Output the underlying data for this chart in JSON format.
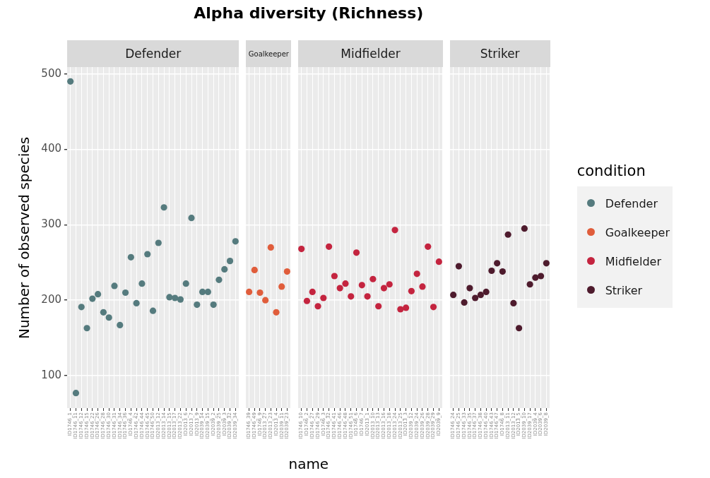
{
  "chart_data": [
    {
      "type": "scatter",
      "title": "Alpha diversity (Richness)",
      "subtitle": "Defender",
      "xlabel": "name",
      "ylabel": "Number of observed species",
      "categories": [
        "ID1746_1",
        "ID1746_11",
        "ID1746_12",
        "ID1746_15",
        "ID1746_22",
        "ID1746_26",
        "ID1746_28",
        "ID1746_30",
        "ID1746_31",
        "ID1746_34",
        "ID1746_36",
        "ID1746_4",
        "ID1746_42",
        "ID1746_44",
        "ID1746_45",
        "ID1746_50",
        "ID2013_12",
        "ID2013_14",
        "ID2013_15",
        "ID2013_17",
        "ID2013_22",
        "ID2013_6",
        "ID2013_7",
        "ID2013_9",
        "ID2039_14",
        "ID2039_15",
        "ID2039_2",
        "ID2039_25",
        "ID2039_3",
        "ID2039_32",
        "ID2039_34"
      ],
      "series": [
        {
          "name": "Defender",
          "color": "#557b7e",
          "values": [
            490,
            77,
            191,
            163,
            202,
            208,
            184,
            177,
            219,
            167,
            210,
            257,
            196,
            222,
            261,
            186,
            276,
            323,
            204,
            203,
            201,
            222,
            309,
            194,
            211,
            211,
            194,
            227,
            241,
            252,
            278
          ]
        }
      ],
      "ylim": [
        57,
        509
      ],
      "yticks": [
        100,
        200,
        300,
        400,
        500
      ],
      "grid": true,
      "marker": "circle"
    },
    {
      "type": "scatter",
      "subtitle": "Goalkeeper",
      "categories": [
        "ID1746_39",
        "ID1746_49",
        "ID1746_9",
        "ID2013_27",
        "ID2013_23",
        "ID2013_4",
        "ID2039_11",
        "ID2039_23"
      ],
      "series": [
        {
          "name": "Goalkeeper",
          "color": "#e05d3b",
          "values": [
            211,
            240,
            210,
            200,
            270,
            184,
            218,
            238
          ]
        }
      ],
      "ylim": [
        57,
        509
      ],
      "yticks": [
        100,
        200,
        300,
        400,
        500
      ],
      "grid": true,
      "marker": "circle",
      "tick_labels": "x"
    },
    {
      "type": "scatter",
      "subtitle": "Midfielder",
      "categories": [
        "ID1746_10",
        "ID1746_2",
        "ID1746_27",
        "ID1746_29",
        "ID1746_3",
        "ID1746_32",
        "ID1746_41",
        "ID1746_46",
        "ID1746_48",
        "ID1746_51",
        "ID1746_6",
        "ID1746_7",
        "ID2013_1",
        "ID2013_10",
        "ID2013_13",
        "ID2013_16",
        "ID2013_18",
        "ID2013_24",
        "ID2013_25",
        "ID2013_3",
        "ID2039_12",
        "ID2039_24",
        "ID2039_26",
        "ID2039_28",
        "ID2039_29",
        "ID2039_9"
      ],
      "series": [
        {
          "name": "Midfielder",
          "color": "#c4243f",
          "values": [
            268,
            199,
            211,
            192,
            203,
            271,
            232,
            216,
            222,
            205,
            263,
            220,
            205,
            228,
            192,
            216,
            221,
            293,
            188,
            190,
            212,
            235,
            218,
            271,
            191,
            251
          ]
        }
      ],
      "ylim": [
        57,
        509
      ],
      "yticks": [
        100,
        200,
        300,
        400,
        500
      ],
      "grid": true,
      "marker": "circle",
      "tick_labels": "x"
    },
    {
      "type": "scatter",
      "subtitle": "Striker",
      "legend": "right",
      "legend_title": "condition",
      "categories": [
        "ID1746_24",
        "ID1746_25",
        "ID1746_33",
        "ID1746_35",
        "ID1746_37",
        "ID1746_38",
        "ID1746_40",
        "ID1746_43",
        "ID1746_47",
        "ID1746_8",
        "ID2013_11",
        "ID2013_12",
        "ID2013_5",
        "ID2039_10",
        "ID2039_17",
        "ID2039_4",
        "ID2039_6",
        "ID2039_8"
      ],
      "series": [
        {
          "name": "Striker",
          "color": "#4e1b2d",
          "values": [
            207,
            245,
            197,
            216,
            203,
            207,
            211,
            239,
            249,
            238,
            287,
            196,
            163,
            295,
            221,
            230,
            232,
            249
          ]
        }
      ],
      "ylim": [
        57,
        509
      ],
      "yticks": [
        100,
        200,
        300,
        400,
        500
      ],
      "grid": true,
      "marker": "circle",
      "tick_labels": "x"
    }
  ]
}
